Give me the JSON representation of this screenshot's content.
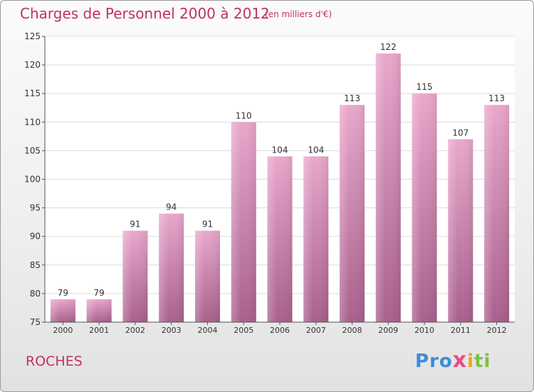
{
  "header": {
    "title": "Charges de Personnel 2000 à 2012",
    "subtitle": "(en milliers d'€)"
  },
  "footer": {
    "place": "ROCHES",
    "logo_letters": [
      "P",
      "r",
      "o",
      "x",
      "i",
      "t",
      "i"
    ]
  },
  "colors": {
    "accent": "#c0306a",
    "bar_top": "#e9a7cc",
    "bar_bottom": "#a8608c",
    "logo": [
      "#3a8ed8",
      "#3a8ed8",
      "#3a8ed8",
      "#e84b8a",
      "#f2a31b",
      "#7cc243",
      "#7cc243"
    ]
  },
  "chart_data": {
    "type": "bar",
    "title": "Charges de Personnel 2000 à 2012",
    "subtitle": "(en milliers d'€)",
    "categories": [
      "2000",
      "2001",
      "2002",
      "2003",
      "2004",
      "2005",
      "2006",
      "2007",
      "2008",
      "2009",
      "2010",
      "2011",
      "2012"
    ],
    "values": [
      79,
      79,
      91,
      94,
      91,
      110,
      104,
      104,
      113,
      122,
      115,
      107,
      113
    ],
    "ylim": [
      75,
      125
    ],
    "yticks": [
      75,
      80,
      85,
      90,
      95,
      100,
      105,
      110,
      115,
      120,
      125
    ],
    "grid": true,
    "legend": "none"
  }
}
